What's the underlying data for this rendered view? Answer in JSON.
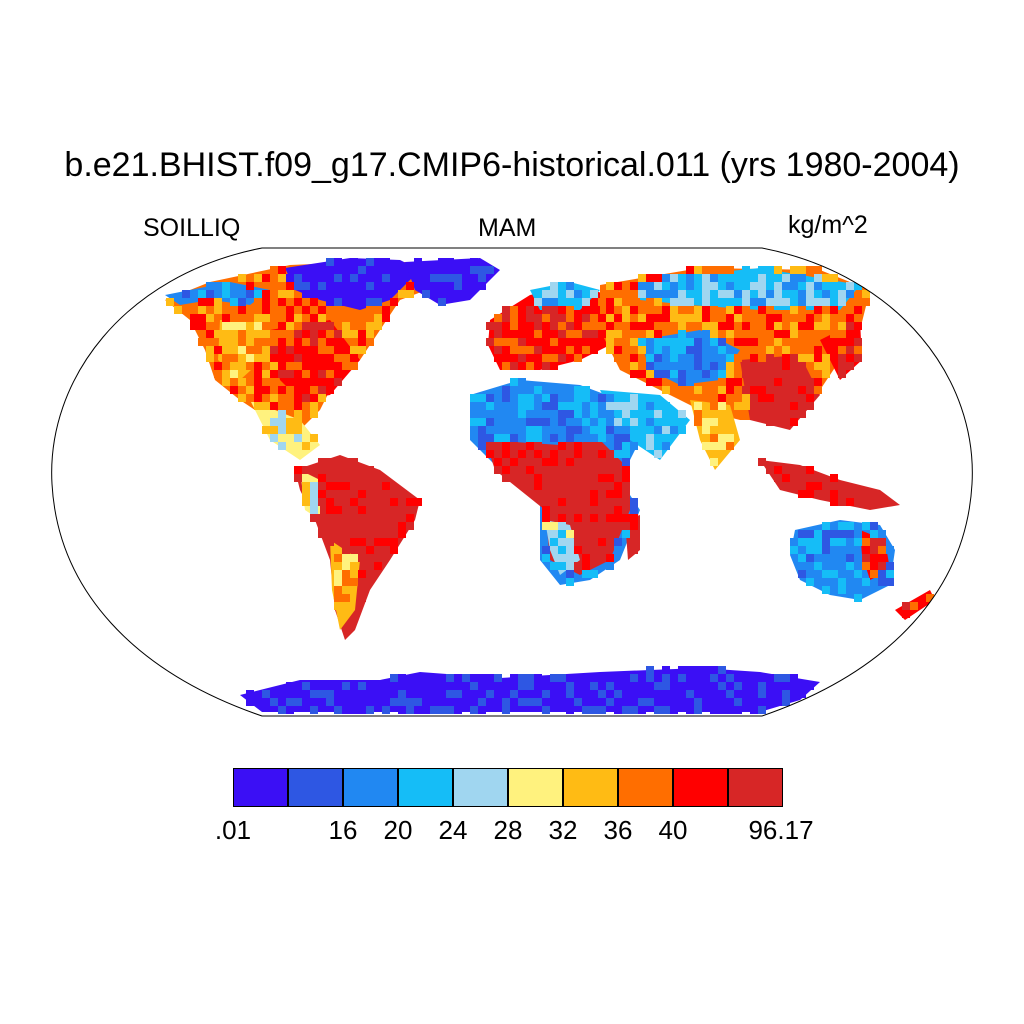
{
  "title": "b.e21.BHIST.f09_g17.CMIP6-historical.011 (yrs 1980-2004)",
  "left_label": "SOILLIQ",
  "center_label": "MAM",
  "right_label": "kg/m^2",
  "colorbar": {
    "colors": [
      "#3b0ff5",
      "#2e57e3",
      "#2188f2",
      "#15bdf7",
      "#a0d6f0",
      "#fff27e",
      "#ffbb14",
      "#ff6e00",
      "#ff0000",
      "#d72626"
    ],
    "labels": [
      ".01",
      "16",
      "20",
      "24",
      "28",
      "32",
      "36",
      "40",
      "96.17"
    ]
  },
  "chart_data": {
    "type": "heatmap",
    "title": "b.e21.BHIST.f09_g17.CMIP6-historical.011 (yrs 1980-2004)",
    "variable": "SOILLIQ",
    "season": "MAM",
    "units": "kg/m^2",
    "projection": "Robinson",
    "levels": [
      0.01,
      16,
      20,
      24,
      28,
      32,
      36,
      40,
      96.17
    ],
    "colorbar_position": "bottom"
  }
}
